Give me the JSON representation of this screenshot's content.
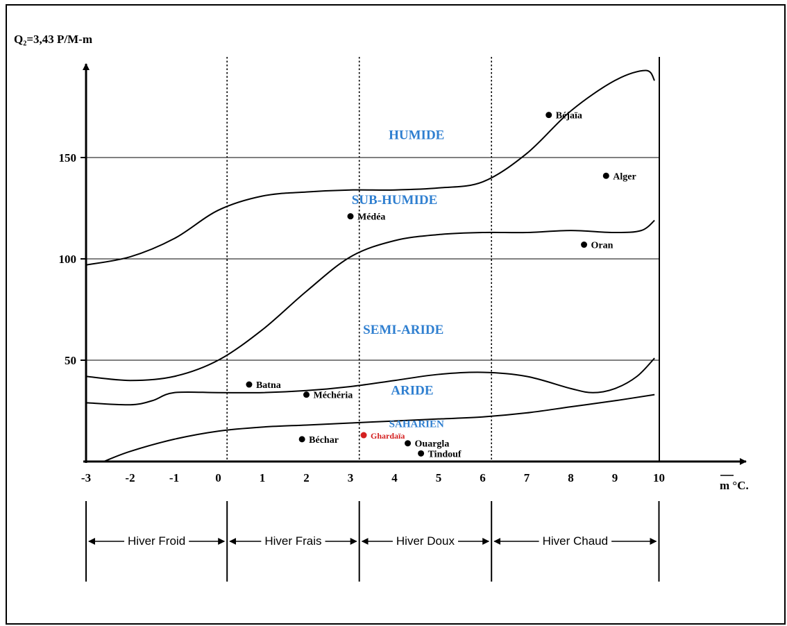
{
  "chart_data": {
    "type": "scatter",
    "ylabel": "Q₂=3,43 P/M-m",
    "xlabel": "m °C.",
    "xlim": [
      -3,
      10
    ],
    "ylim": [
      0,
      190
    ],
    "x_ticks": [
      "-3",
      "-2",
      "-1",
      "0",
      "1",
      "2",
      "3",
      "4",
      "5",
      "6",
      "7",
      "8",
      "9",
      "10"
    ],
    "y_ticks": [
      "50",
      "100",
      "150"
    ],
    "grid": "horizontal lines at 50, 100, 150",
    "zones": [
      {
        "label": "HUMIDE",
        "x": 4.5,
        "y": 159,
        "size": 19
      },
      {
        "label": "SUB-HUMIDE",
        "x": 4.0,
        "y": 127,
        "size": 19
      },
      {
        "label": "SEMI-ARIDE",
        "x": 4.2,
        "y": 63,
        "size": 19
      },
      {
        "label": "ARIDE",
        "x": 4.4,
        "y": 33,
        "size": 19
      },
      {
        "label": "SAHARIEN",
        "x": 4.5,
        "y": 17,
        "size": 15
      }
    ],
    "points": [
      {
        "name": "Béjaïa",
        "x": 7.5,
        "y": 171,
        "color": "#000000"
      },
      {
        "name": "Alger",
        "x": 8.8,
        "y": 141,
        "color": "#000000"
      },
      {
        "name": "Médéa",
        "x": 3.0,
        "y": 121,
        "color": "#000000"
      },
      {
        "name": "Oran",
        "x": 8.3,
        "y": 107,
        "color": "#000000"
      },
      {
        "name": "Batna",
        "x": 0.7,
        "y": 38,
        "color": "#000000"
      },
      {
        "name": "Méchéria",
        "x": 2.0,
        "y": 33,
        "color": "#000000"
      },
      {
        "name": "Béchar",
        "x": 1.9,
        "y": 11,
        "color": "#000000"
      },
      {
        "name": "Ghardaïa",
        "x": 3.3,
        "y": 13,
        "color": "#d42020"
      },
      {
        "name": "Ouargla",
        "x": 4.3,
        "y": 9,
        "color": "#000000"
      },
      {
        "name": "Tindouf",
        "x": 4.6,
        "y": 4,
        "color": "#000000"
      }
    ],
    "boundaries": [
      {
        "name": "humide / sub-humide",
        "points": [
          [
            -3,
            97
          ],
          [
            -2,
            101
          ],
          [
            -1,
            110
          ],
          [
            0,
            124
          ],
          [
            1,
            131
          ],
          [
            2,
            133
          ],
          [
            3,
            134
          ],
          [
            4,
            134
          ],
          [
            5,
            135
          ],
          [
            6,
            138
          ],
          [
            7,
            152
          ],
          [
            8,
            173
          ],
          [
            9,
            188
          ],
          [
            9.7,
            193
          ],
          [
            9.9,
            188
          ]
        ]
      },
      {
        "name": "sub-humide / semi-aride",
        "points": [
          [
            -3,
            42
          ],
          [
            -2,
            40
          ],
          [
            -1,
            42
          ],
          [
            0,
            50
          ],
          [
            1,
            65
          ],
          [
            2,
            84
          ],
          [
            3,
            101
          ],
          [
            4,
            109
          ],
          [
            5,
            112
          ],
          [
            6,
            113
          ],
          [
            7,
            113
          ],
          [
            8,
            114
          ],
          [
            9,
            113
          ],
          [
            9.6,
            114
          ],
          [
            9.9,
            119
          ]
        ]
      },
      {
        "name": "semi-aride / aride",
        "points": [
          [
            -3,
            29
          ],
          [
            -2,
            28
          ],
          [
            -1.5,
            30
          ],
          [
            -1,
            34
          ],
          [
            0,
            34
          ],
          [
            1,
            34
          ],
          [
            2,
            35
          ],
          [
            3,
            37
          ],
          [
            4,
            40
          ],
          [
            5,
            43
          ],
          [
            6,
            44
          ],
          [
            7,
            42
          ],
          [
            8,
            36
          ],
          [
            8.5,
            34
          ],
          [
            9,
            36
          ],
          [
            9.5,
            42
          ],
          [
            9.9,
            51
          ]
        ]
      },
      {
        "name": "aride / saharien",
        "points": [
          [
            -2.6,
            0
          ],
          [
            -2,
            5
          ],
          [
            -1,
            11
          ],
          [
            0,
            15
          ],
          [
            1,
            17
          ],
          [
            2,
            18
          ],
          [
            3,
            19
          ],
          [
            4,
            20
          ],
          [
            5,
            21
          ],
          [
            6,
            22
          ],
          [
            7,
            24
          ],
          [
            8,
            27
          ],
          [
            9,
            30
          ],
          [
            9.9,
            33
          ]
        ]
      }
    ],
    "vertical_dividers": [
      0.2,
      3.2,
      6.2
    ],
    "seasons": [
      "Hiver Froid",
      "Hiver Frais",
      "Hiver Doux",
      "Hiver Chaud"
    ]
  }
}
